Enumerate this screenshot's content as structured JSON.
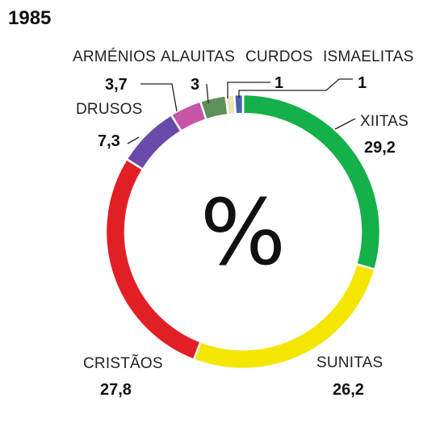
{
  "chart_data": {
    "type": "pie",
    "title": "1985",
    "center_label": "%",
    "slices": [
      {
        "name": "XIITAS",
        "value": 29.2,
        "value_label": "29,2",
        "color": "#14b04a"
      },
      {
        "name": "SUNITAS",
        "value": 26.2,
        "value_label": "26,2",
        "color": "#f5e600"
      },
      {
        "name": "CRISTÃOS",
        "value": 27.8,
        "value_label": "27,8",
        "color": "#e31f26"
      },
      {
        "name": "DRUSOS",
        "value": 7.3,
        "value_label": "7,3",
        "color": "#6a4aa8"
      },
      {
        "name": "ARMÉNIOS",
        "value": 3.7,
        "value_label": "3,7",
        "color": "#c755a6"
      },
      {
        "name": "ALAUITAS",
        "value": 3,
        "value_label": "3",
        "color": "#5f8f5a"
      },
      {
        "name": "CURDOS",
        "value": 1,
        "value_label": "1",
        "color": "#ece6b8"
      },
      {
        "name": "ISMAELITAS",
        "value": 1,
        "value_label": "1",
        "color": "#4a63ad"
      }
    ]
  }
}
